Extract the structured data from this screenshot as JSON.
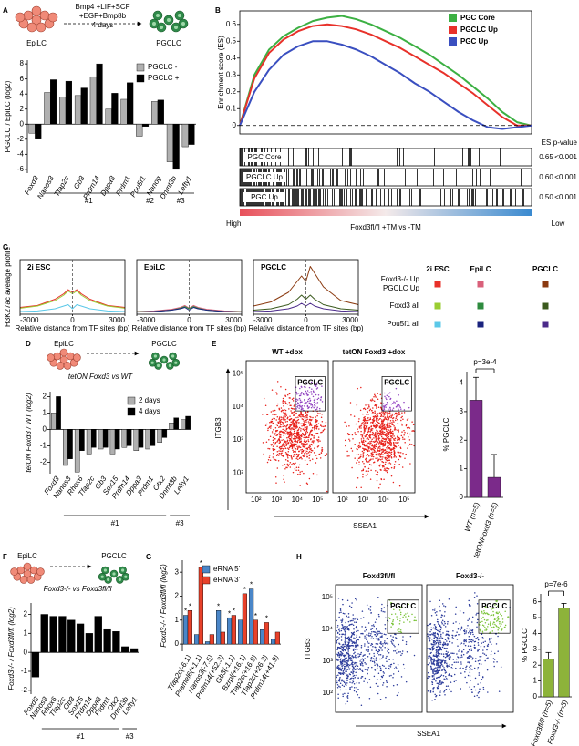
{
  "panel_labels": [
    "A",
    "B",
    "C",
    "D",
    "E",
    "F",
    "G",
    "H"
  ],
  "profile_legend": {
    "columns": [
      "2i ESC",
      "EpiLC",
      "PGCLC"
    ],
    "rows": [
      [
        "Foxd3-/- Up",
        "PGCLC Up"
      ],
      [
        "Foxd3 all"
      ],
      [
        "Pou5f1 all"
      ]
    ],
    "colors": [
      [
        "#e8312a",
        "#d9607a",
        "#8b3a10"
      ],
      [
        "#9acd32",
        "#2e8b3e",
        "#3b5a1e"
      ],
      [
        "#5bc8e8",
        "#1a237e",
        "#4b2a8a"
      ]
    ]
  },
  "chart_data": [
    {
      "type": "bar",
      "diagram": {
        "from": "EpiLC",
        "to": "PGCLC",
        "conditions": [
          "Bmp4 +LIF+SCF",
          "+EGF+Bmp8b",
          "4 days"
        ]
      },
      "ylabel": "PGCLC / EpiLC (log2)",
      "categories": [
        "Foxd3",
        "Nanos3",
        "Tfap2c",
        "Gb3",
        "Prdm14",
        "Dppa3",
        "Prdm1",
        "Pou5f1",
        "Nanog",
        "Dnmt3b",
        "Lefty1"
      ],
      "series": [
        {
          "name": "PGCLC -",
          "color": "#b0b0b0",
          "values": [
            -1.2,
            4.2,
            3.6,
            3.8,
            6.3,
            2.0,
            3.3,
            -1.6,
            3.0,
            -5.0,
            -3.0
          ]
        },
        {
          "name": "PGCLC +",
          "color": "#000000",
          "values": [
            -2.0,
            5.9,
            5.7,
            4.8,
            8.0,
            4.1,
            5.5,
            -0.3,
            3.2,
            -6.0,
            -2.7
          ]
        }
      ],
      "ylim": [
        -6.5,
        8.5
      ],
      "yticks": [
        -6,
        -4,
        -2,
        0,
        2,
        4,
        6,
        8
      ],
      "groups": [
        {
          "label": "#1",
          "span": [
            1,
            6
          ]
        },
        {
          "label": "#2",
          "span": [
            7,
            8
          ]
        },
        {
          "label": "#3",
          "span": [
            9,
            10
          ]
        }
      ]
    },
    {
      "type": "line",
      "ylabel": "Enrichment score (ES)",
      "ylim": [
        -0.05,
        0.68
      ],
      "yticks": [
        0,
        0.1,
        0.2,
        0.3,
        0.4,
        0.5,
        0.6
      ],
      "series": [
        {
          "name": "PGC Core",
          "color": "#3cb043",
          "es": "0.65",
          "p_value": "<0.001",
          "values": [
            0,
            0.3,
            0.45,
            0.53,
            0.58,
            0.62,
            0.64,
            0.65,
            0.63,
            0.6,
            0.56,
            0.52,
            0.47,
            0.42,
            0.36,
            0.3,
            0.23,
            0.16,
            0.08,
            0.02,
            0
          ]
        },
        {
          "name": "PGCLC Up",
          "color": "#e8312a",
          "es": "0.60",
          "p_value": "<0.001",
          "values": [
            0,
            0.28,
            0.43,
            0.51,
            0.56,
            0.59,
            0.6,
            0.59,
            0.57,
            0.54,
            0.5,
            0.46,
            0.41,
            0.36,
            0.31,
            0.25,
            0.19,
            0.12,
            0.05,
            0,
            0
          ]
        },
        {
          "name": "PGC Up",
          "color": "#3a4fc0",
          "es": "0.50",
          "p_value": "<0.001",
          "values": [
            0,
            0.2,
            0.33,
            0.42,
            0.47,
            0.5,
            0.5,
            0.48,
            0.45,
            0.41,
            0.36,
            0.31,
            0.25,
            0.2,
            0.14,
            0.08,
            0.03,
            -0.01,
            -0.02,
            -0.01,
            0
          ]
        }
      ],
      "table_headers": [
        "ES",
        "p-value"
      ],
      "rank_labels": [
        "High",
        "Low"
      ],
      "comparison": "Foxd3fl/fl +TM vs -TM"
    },
    {
      "type": "line",
      "title": "2i ESC",
      "ylabel": "H3K27ac average profile",
      "xlabel": "Relative distance from TF sites (bp)",
      "x": [
        -3000,
        -2000,
        -1000,
        -500,
        -250,
        0,
        250,
        500,
        1000,
        2000,
        3000
      ],
      "xlim": [
        -3000,
        3000
      ],
      "xticks": [
        -3000,
        0,
        3000
      ],
      "ylim": [
        0,
        2
      ],
      "series": [
        {
          "values": [
            0.25,
            0.32,
            0.55,
            0.75,
            0.9,
            0.8,
            0.9,
            0.75,
            0.55,
            0.32,
            0.25
          ]
        },
        {
          "values": [
            0.22,
            0.3,
            0.5,
            0.7,
            0.85,
            0.75,
            0.85,
            0.7,
            0.5,
            0.3,
            0.22
          ]
        },
        {
          "values": [
            0.1,
            0.12,
            0.2,
            0.3,
            0.35,
            0.2,
            0.35,
            0.3,
            0.2,
            0.12,
            0.1
          ]
        }
      ]
    },
    {
      "type": "line",
      "title": "EpiLC",
      "xlabel": "Relative distance from TF sites (bp)",
      "x": [
        -3000,
        -2000,
        -1000,
        -500,
        -250,
        0,
        250,
        500,
        1000,
        2000,
        3000
      ],
      "xlim": [
        -3000,
        3000
      ],
      "xticks": [
        -3000,
        0,
        3000
      ],
      "ylim": [
        0,
        2
      ],
      "series": [
        {
          "values": [
            0.1,
            0.12,
            0.18,
            0.25,
            0.32,
            0.22,
            0.32,
            0.25,
            0.18,
            0.12,
            0.1
          ]
        },
        {
          "values": [
            0.09,
            0.1,
            0.15,
            0.22,
            0.28,
            0.2,
            0.28,
            0.22,
            0.15,
            0.1,
            0.09
          ]
        },
        {
          "values": [
            0.08,
            0.1,
            0.15,
            0.2,
            0.25,
            0.15,
            0.25,
            0.2,
            0.15,
            0.1,
            0.08
          ]
        }
      ]
    },
    {
      "type": "line",
      "title": "PGCLC",
      "xlabel": "Relative distance from TF sites (bp)",
      "x": [
        -3000,
        -2000,
        -1000,
        -500,
        -250,
        0,
        250,
        500,
        1000,
        2000,
        3000
      ],
      "xlim": [
        -3000,
        3000
      ],
      "xticks": [
        -3000,
        0,
        3000
      ],
      "ylim": [
        0,
        2
      ],
      "series": [
        {
          "values": [
            0.3,
            0.45,
            0.8,
            1.2,
            1.4,
            1.2,
            1.75,
            1.5,
            1.0,
            0.5,
            0.35
          ]
        },
        {
          "values": [
            0.15,
            0.2,
            0.35,
            0.55,
            0.7,
            0.55,
            0.7,
            0.55,
            0.35,
            0.2,
            0.15
          ]
        },
        {
          "values": [
            0.1,
            0.12,
            0.2,
            0.3,
            0.4,
            0.3,
            0.4,
            0.3,
            0.2,
            0.12,
            0.1
          ]
        }
      ]
    },
    {
      "type": "bar",
      "diagram": {
        "from": "EpiLC",
        "to": "PGCLC"
      },
      "comparison": "tetON Foxd3 vs WT",
      "ylabel": "tetON Foxd3 / WT (log2)",
      "categories": [
        "Foxd3",
        "Nanos3",
        "Rhox6",
        "Tfap2c",
        "Gb3",
        "Sox15",
        "Prdm14",
        "Dppa3",
        "Prdm1",
        "Otx2",
        "Dnmt3b",
        "Lefty1"
      ],
      "series": [
        {
          "name": "2 days",
          "color": "#b0b0b0",
          "values": [
            1.0,
            -2.2,
            -2.6,
            -1.5,
            -1.2,
            -1.5,
            -1.1,
            -1.3,
            -1.2,
            -0.8,
            0.4,
            0.6
          ]
        },
        {
          "name": "4 days",
          "color": "#000000",
          "values": [
            2.0,
            -1.8,
            -1.3,
            -1.1,
            -1.1,
            -1.2,
            -1.0,
            -1.1,
            -1.0,
            -0.5,
            0.7,
            0.8
          ]
        }
      ],
      "ylim": [
        -2.7,
        2.3
      ],
      "yticks": [
        -2,
        -1,
        0,
        1,
        2
      ],
      "groups": [
        {
          "label": "#1",
          "span": [
            1,
            9
          ]
        },
        {
          "label": "#3",
          "span": [
            10,
            11
          ]
        }
      ]
    },
    {
      "type": "bar",
      "ylabel": "% PGCLC",
      "categories": [
        "WT (n=5)",
        "tetONFoxd3 (n=5)"
      ],
      "values": [
        3.4,
        0.7
      ],
      "errors": [
        0.8,
        0.8
      ],
      "color": "#7b2a8a",
      "ylim": [
        0,
        4.4
      ],
      "yticks": [
        0,
        1,
        2,
        3,
        4
      ],
      "annotation": "p=3e-4",
      "flow": {
        "plots": [
          {
            "title": "WT +dox"
          },
          {
            "title": "tetON Foxd3 +dox"
          }
        ],
        "gate": "PGCLC",
        "x_label": "SSEA1",
        "y_label": "ITGB3",
        "x_tick_labels": [
          "10²",
          "10³",
          "10⁴",
          "10⁵"
        ],
        "y_tick_labels": [
          "10²",
          "10³",
          "10⁴",
          "10⁵"
        ],
        "dot_color": "#e8201a",
        "gate_color": "#9040c0"
      }
    },
    {
      "type": "bar",
      "diagram": {
        "from": "EpiLC",
        "to": "PGCLC"
      },
      "comparison": "Foxd3-/- vs Foxd3fl/fl",
      "ylabel": "Foxd3-/- / Foxd3fl/fl (log2)",
      "categories": [
        "Foxd3",
        "Nanos3",
        "Rhox6",
        "Tfap2c",
        "Gb3",
        "Sox15",
        "Prdm14",
        "Dppa3",
        "Prdm1",
        "Otx2",
        "Dnmt3b",
        "Lefty1"
      ],
      "values": [
        -1.3,
        2.0,
        1.9,
        1.9,
        1.7,
        1.5,
        1.0,
        1.9,
        1.2,
        1.1,
        0.3,
        0.2
      ],
      "color": "#000000",
      "ylim": [
        -2.2,
        2.6
      ],
      "yticks": [
        -2,
        -1,
        0,
        1,
        2
      ],
      "groups": [
        {
          "label": "#1",
          "span": [
            1,
            9
          ]
        },
        {
          "label": "#3",
          "span": [
            10,
            11
          ]
        }
      ]
    },
    {
      "type": "bar",
      "ylabel": "Foxd3-/- / Foxd3fl/fl (log2)",
      "categories": [
        "Tfap2c(-6.1)",
        "Pramel6(+1.1)",
        "Nanos3(-7.5)",
        "Prdm14(+52.3)",
        "Gb3(-1.1)",
        "Bzrpl(+16.1)",
        "Tfap2c(+16.9)",
        "Tfap2c(+26.3)",
        "Prdm14(+41.9)"
      ],
      "series": [
        {
          "name": "eRNA 5'",
          "color": "#4a86c8",
          "values": [
            1.2,
            0.4,
            0.1,
            1.4,
            1.1,
            1.0,
            2.3,
            0.6,
            0.2
          ]
        },
        {
          "name": "eRNA 3'",
          "color": "#e8412a",
          "values": [
            1.4,
            3.2,
            0.4,
            0.5,
            1.2,
            2.1,
            1.0,
            0.9,
            0.5
          ]
        }
      ],
      "ylim": [
        -0.3,
        3.5
      ],
      "yticks": [
        0,
        1,
        2,
        3
      ],
      "annotation": "*",
      "starred": [
        [
          0,
          0
        ],
        [
          0,
          1
        ],
        [
          1,
          1
        ],
        [
          3,
          0
        ],
        [
          4,
          0
        ],
        [
          4,
          1
        ],
        [
          5,
          1
        ],
        [
          6,
          0
        ],
        [
          6,
          1
        ],
        [
          7,
          1
        ]
      ]
    },
    {
      "type": "bar",
      "ylabel": "% PGCLC",
      "categories": [
        "Foxd3fl/fl (n=5)",
        "Foxd3-/- (n=5)"
      ],
      "values": [
        2.4,
        5.6
      ],
      "errors": [
        0.4,
        0.3
      ],
      "color": "#8db33a",
      "ylim": [
        0,
        6.5
      ],
      "yticks": [
        0,
        1,
        2,
        3,
        4,
        5,
        6
      ],
      "annotation": "p=7e-6",
      "flow": {
        "plots": [
          {
            "title": "Foxd3fl/fl"
          },
          {
            "title": "Foxd3-/-"
          }
        ],
        "gate": "PGCLC",
        "x_label": "SSEA1",
        "y_label": "ITGB3",
        "y_tick_labels": [
          "10²",
          "10³",
          "10⁴",
          "10⁵"
        ],
        "dot_color": "#2a3a9a",
        "gate_color": "#7cc43a"
      }
    }
  ]
}
